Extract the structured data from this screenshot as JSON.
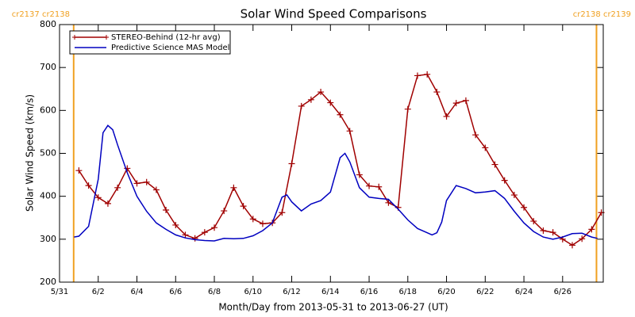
{
  "chart_data": {
    "type": "line",
    "title": "Solar Wind Speed Comparisons",
    "xlabel": "Month/Day from 2013-05-31 to 2013-06-27 (UT)",
    "ylabel": "Solar Wind Speed (km/s)",
    "xlim": [
      0,
      28.1
    ],
    "ylim": [
      200,
      800
    ],
    "yticks": [
      200,
      300,
      400,
      500,
      600,
      700,
      800
    ],
    "xticks": [
      {
        "value": 0,
        "label": "5/31"
      },
      {
        "value": 2,
        "label": "6/2"
      },
      {
        "value": 4,
        "label": "6/4"
      },
      {
        "value": 6,
        "label": "6/6"
      },
      {
        "value": 8,
        "label": "6/8"
      },
      {
        "value": 10,
        "label": "6/10"
      },
      {
        "value": 12,
        "label": "6/12"
      },
      {
        "value": 14,
        "label": "6/14"
      },
      {
        "value": 16,
        "label": "6/16"
      },
      {
        "value": 18,
        "label": "6/18"
      },
      {
        "value": 20,
        "label": "6/20"
      },
      {
        "value": 22,
        "label": "6/22"
      },
      {
        "value": 24,
        "label": "6/24"
      },
      {
        "value": 26,
        "label": "6/26"
      }
    ],
    "annotations": [
      {
        "label": "cr2137 cr2138",
        "x": 0.73,
        "color": "#f0a020"
      },
      {
        "label": "cr2138 cr2139",
        "x": 27.75,
        "color": "#f0a020"
      }
    ],
    "series": [
      {
        "name": "STEREO-Behind (12-hr avg)",
        "color": "#a00000",
        "marker": "+",
        "x": [
          1,
          1.5,
          2,
          2.5,
          3,
          3.5,
          4,
          4.5,
          5,
          5.5,
          6,
          6.5,
          7,
          7.5,
          8,
          8.5,
          9,
          9.5,
          10,
          10.5,
          11,
          11.5,
          12,
          12.5,
          13,
          13.5,
          14,
          14.5,
          15,
          15.5,
          16,
          16.5,
          17,
          17.5,
          18,
          18.5,
          19,
          19.5,
          20,
          20.5,
          21,
          21.5,
          22,
          22.5,
          23,
          23.5,
          24,
          24.5,
          25,
          25.5,
          26,
          26.5,
          27,
          27.5,
          28
        ],
        "values": [
          460,
          425,
          397,
          383,
          420,
          465,
          430,
          433,
          415,
          368,
          333,
          310,
          302,
          316,
          327,
          366,
          420,
          377,
          347,
          336,
          338,
          362,
          476,
          610,
          625,
          643,
          618,
          590,
          552,
          450,
          424,
          422,
          385,
          374,
          603,
          681,
          684,
          643,
          586,
          617,
          623,
          543,
          513,
          474,
          437,
          403,
          374,
          342,
          320,
          316,
          300,
          286,
          301,
          323,
          362
        ]
      },
      {
        "name": "Predictive Science MAS Model",
        "color": "#0000c0",
        "x": [
          0.75,
          1,
          1.5,
          2,
          2.25,
          2.5,
          2.75,
          3,
          3.5,
          4,
          4.5,
          5,
          5.5,
          6,
          6.5,
          7,
          7.5,
          8,
          8.5,
          9,
          9.5,
          10,
          10.5,
          11,
          11.5,
          11.75,
          12,
          12.5,
          13,
          13.5,
          14,
          14.5,
          14.75,
          15,
          15.5,
          16,
          16.5,
          17,
          17.5,
          18,
          18.5,
          19,
          19.25,
          19.5,
          19.75,
          20,
          20.5,
          21,
          21.5,
          22,
          22.5,
          23,
          23.5,
          24,
          24.5,
          25,
          25.5,
          26,
          26.5,
          27,
          27.5,
          27.8
        ],
        "values": [
          305,
          307,
          330,
          440,
          548,
          565,
          555,
          520,
          455,
          400,
          365,
          338,
          323,
          310,
          303,
          299,
          297,
          296,
          302,
          301,
          302,
          308,
          320,
          338,
          398,
          403,
          387,
          366,
          382,
          390,
          410,
          490,
          500,
          480,
          420,
          398,
          395,
          393,
          370,
          345,
          325,
          315,
          310,
          315,
          340,
          390,
          425,
          418,
          408,
          410,
          413,
          395,
          365,
          338,
          318,
          305,
          300,
          305,
          313,
          314,
          305,
          302
        ]
      }
    ]
  }
}
